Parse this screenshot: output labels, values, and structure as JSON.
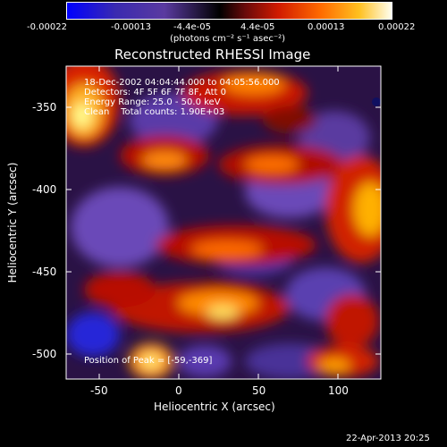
{
  "colorbar": {
    "ticks": [
      "-0.00022",
      "-0.00013",
      "-4.4e-05",
      "4.4e-05",
      "0.00013",
      "0.00022"
    ],
    "units": "(photons cm⁻² s⁻¹ asec⁻²)"
  },
  "title": "Reconstructed RHESSI Image",
  "annotation": {
    "time_range": "18-Dec-2002 04:04:44.000 to 04:05:56.000",
    "detectors": "Detectors: 4F 5F 6F 7F 8F, Att 0",
    "energy": "Energy Range: 25.0 - 50.0 keV",
    "clean": "Clean    Total counts: 1.90E+03",
    "peak": "Position of Peak = [-59,-369]"
  },
  "axes": {
    "xlabel": "Heliocentric X (arcsec)",
    "ylabel": "Heliocentric Y (arcsec)",
    "xticks": [
      "-50",
      "0",
      "50",
      "100"
    ],
    "yticks": [
      "-350",
      "-400",
      "-450",
      "-500"
    ]
  },
  "footer": "22-Apr-2013 20:25",
  "colors": {
    "background": "#000000",
    "colormap": [
      "#0000ff",
      "#4a2aa8",
      "#6a3fb8",
      "#000000",
      "#8a1010",
      "#ff2000",
      "#ff7a00",
      "#ffd020",
      "#ffffc0"
    ]
  }
}
